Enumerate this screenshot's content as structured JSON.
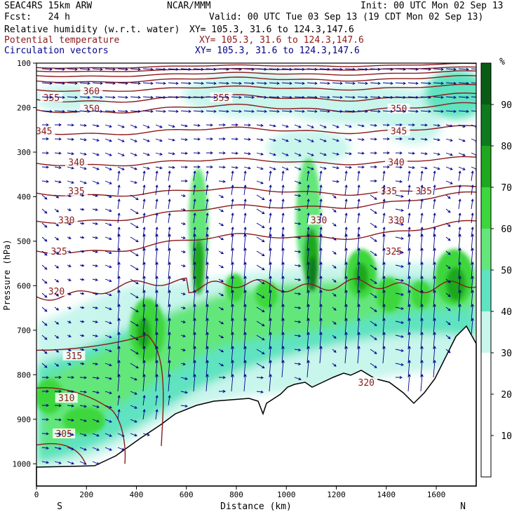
{
  "header": {
    "model": "SEAC4RS 15km ARW",
    "forecast": "Fcst:   24 h",
    "center": "NCAR/MMM",
    "init": "Init: 00 UTC Mon 02 Sep 13",
    "valid": "Valid: 00 UTC Tue 03 Sep 13 (19 CDT Mon 02 Sep 13)",
    "fields": [
      {
        "name": "Relative humidity (w.r.t. water)",
        "xy": "XY= 105.3, 31.6 to 124.3,147.6",
        "color": "#000000"
      },
      {
        "name": "Potential temperature",
        "xy": "XY= 105.3, 31.6 to 124.3,147.6",
        "color": "#8b1a1a"
      },
      {
        "name": "Circulation vectors",
        "xy": "XY= 105.3, 31.6 to 124.3,147.6",
        "color": "#00008b"
      }
    ]
  },
  "chart_data": {
    "type": "heatmap",
    "xlabel": "Distance (km)",
    "ylabel": "Pressure (hPa)",
    "xlim": [
      0,
      1760
    ],
    "ylim": [
      1050,
      100
    ],
    "x_ticks": [
      "0",
      "200",
      "400",
      "600",
      "800",
      "1000",
      "1200",
      "1400",
      "1600"
    ],
    "y_ticks": [
      "100",
      "200",
      "300",
      "400",
      "500",
      "600",
      "700",
      "800",
      "900",
      "1000"
    ],
    "x_end_labels": {
      "left": "S",
      "right": "N"
    },
    "colorbar": {
      "unit": "%",
      "labels": [
        "10",
        "20",
        "30",
        "40",
        "50",
        "60",
        "70",
        "80",
        "90"
      ],
      "colors": [
        "#ffffff",
        "#ffffff",
        "#ffffff",
        "#c8f5ec",
        "#5fe3c0",
        "#64e67a",
        "#3cd73c",
        "#1ea81e",
        "#0e7a1e",
        "#0a5c14"
      ]
    },
    "theta_labels": [
      {
        "text": "360",
        "x": 220,
        "p": 165
      },
      {
        "text": "355",
        "x": 60,
        "p": 180
      },
      {
        "text": "355",
        "x": 740,
        "p": 180
      },
      {
        "text": "350",
        "x": 220,
        "p": 205
      },
      {
        "text": "350",
        "x": 1450,
        "p": 205
      },
      {
        "text": "345",
        "x": 30,
        "p": 255
      },
      {
        "text": "345",
        "x": 1450,
        "p": 255
      },
      {
        "text": "340",
        "x": 160,
        "p": 325
      },
      {
        "text": "340",
        "x": 1440,
        "p": 325
      },
      {
        "text": "335",
        "x": 160,
        "p": 390
      },
      {
        "text": "335",
        "x": 1410,
        "p": 390
      },
      {
        "text": "335",
        "x": 1550,
        "p": 390
      },
      {
        "text": "330",
        "x": 120,
        "p": 455
      },
      {
        "text": "330",
        "x": 1130,
        "p": 455
      },
      {
        "text": "330",
        "x": 1440,
        "p": 455
      },
      {
        "text": "325",
        "x": 90,
        "p": 525
      },
      {
        "text": "325",
        "x": 1430,
        "p": 525
      },
      {
        "text": "320",
        "x": 80,
        "p": 615
      },
      {
        "text": "320",
        "x": 1320,
        "p": 820
      },
      {
        "text": "315",
        "x": 150,
        "p": 760
      },
      {
        "text": "310",
        "x": 120,
        "p": 855
      },
      {
        "text": "305",
        "x": 110,
        "p": 935
      }
    ],
    "theta_color": "#8b1a1a",
    "vector_color": "#00008b"
  }
}
